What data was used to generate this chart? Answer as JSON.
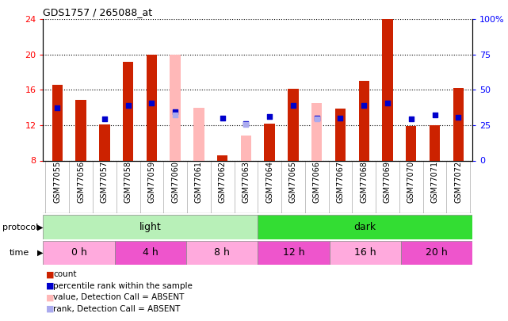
{
  "title": "GDS1757 / 265088_at",
  "samples": [
    "GSM77055",
    "GSM77056",
    "GSM77057",
    "GSM77058",
    "GSM77059",
    "GSM77060",
    "GSM77061",
    "GSM77062",
    "GSM77063",
    "GSM77064",
    "GSM77065",
    "GSM77066",
    "GSM77067",
    "GSM77068",
    "GSM77069",
    "GSM77070",
    "GSM77071",
    "GSM77072"
  ],
  "red_bars": [
    16.6,
    14.9,
    12.1,
    19.2,
    20.0,
    null,
    null,
    8.6,
    null,
    12.2,
    16.1,
    null,
    13.9,
    17.0,
    24.0,
    11.9,
    12.0,
    16.2
  ],
  "pink_bars": [
    null,
    null,
    null,
    null,
    null,
    20.0,
    14.0,
    null,
    10.8,
    null,
    null,
    14.5,
    null,
    null,
    null,
    null,
    null,
    null
  ],
  "blue_dots": [
    14.0,
    null,
    12.7,
    14.2,
    14.5,
    13.5,
    null,
    12.8,
    12.2,
    13.0,
    14.2,
    12.8,
    12.8,
    14.2,
    14.5,
    12.7,
    13.2,
    12.9
  ],
  "light_blue_dots": [
    null,
    null,
    null,
    null,
    null,
    13.2,
    null,
    null,
    12.1,
    null,
    null,
    12.7,
    null,
    null,
    null,
    null,
    null,
    null
  ],
  "ylim": [
    8,
    24
  ],
  "yticks_left": [
    8,
    12,
    16,
    20,
    24
  ],
  "yticks_right": [
    0,
    25,
    50,
    75,
    100
  ],
  "yticks_right_labels": [
    "0",
    "25",
    "50",
    "75",
    "100%"
  ],
  "protocol_groups": [
    {
      "label": "light",
      "start": 0,
      "end": 9,
      "color": "#b8f0b8"
    },
    {
      "label": "dark",
      "start": 9,
      "end": 18,
      "color": "#33dd33"
    }
  ],
  "time_groups": [
    {
      "label": "0 h",
      "start": 0,
      "end": 3,
      "color": "#ffaadd"
    },
    {
      "label": "4 h",
      "start": 3,
      "end": 6,
      "color": "#ee55cc"
    },
    {
      "label": "8 h",
      "start": 6,
      "end": 9,
      "color": "#ffaadd"
    },
    {
      "label": "12 h",
      "start": 9,
      "end": 12,
      "color": "#ee55cc"
    },
    {
      "label": "16 h",
      "start": 12,
      "end": 15,
      "color": "#ffaadd"
    },
    {
      "label": "20 h",
      "start": 15,
      "end": 18,
      "color": "#ee55cc"
    }
  ],
  "red_color": "#cc2200",
  "pink_color": "#ffb8b8",
  "blue_color": "#0000cc",
  "light_blue_color": "#aaaaee",
  "bar_width": 0.45,
  "dot_size": 22,
  "ybase": 8,
  "legend_items": [
    {
      "color": "#cc2200",
      "label": "count"
    },
    {
      "color": "#0000cc",
      "label": "percentile rank within the sample"
    },
    {
      "color": "#ffb8b8",
      "label": "value, Detection Call = ABSENT"
    },
    {
      "color": "#aaaaee",
      "label": "rank, Detection Call = ABSENT"
    }
  ]
}
